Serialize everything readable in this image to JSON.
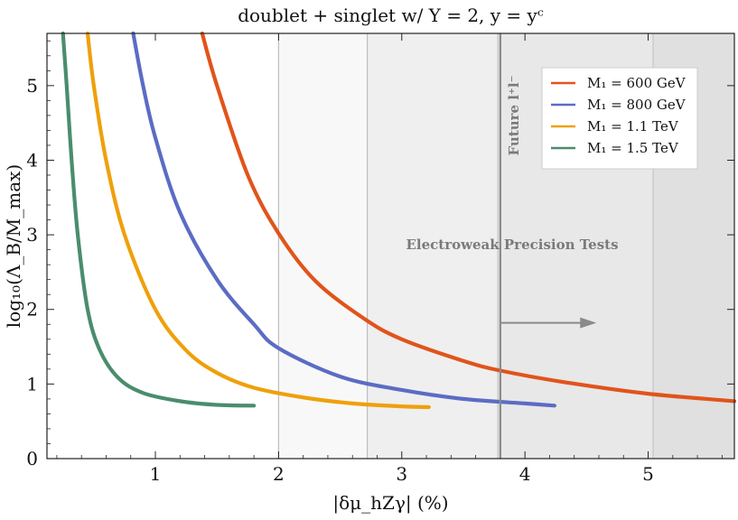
{
  "chart_data": {
    "type": "line",
    "title": "doublet + singlet w/ Y = 2,  y = yᶜ",
    "xlabel": "|δμ_hZγ| (%)",
    "ylabel": "log₁₀(Λ_B/M_max)",
    "xlim": [
      0.12,
      5.7
    ],
    "ylim": [
      0,
      5.7
    ],
    "xticks": [
      1,
      2,
      3,
      4,
      5
    ],
    "yticks": [
      0,
      1,
      2,
      3,
      4,
      5
    ],
    "grid": false,
    "legend_position": "top-right",
    "series": [
      {
        "name": "M₁ = 600 GeV",
        "color": "#e0541b",
        "points": [
          [
            1.38,
            5.7
          ],
          [
            1.5,
            5.0
          ],
          [
            1.75,
            3.8
          ],
          [
            2.0,
            3.02
          ],
          [
            2.3,
            2.38
          ],
          [
            2.7,
            1.87
          ],
          [
            3.0,
            1.6
          ],
          [
            3.5,
            1.31
          ],
          [
            3.8,
            1.18
          ],
          [
            4.3,
            1.03
          ],
          [
            5.0,
            0.87
          ],
          [
            5.7,
            0.77
          ]
        ]
      },
      {
        "name": "M₁ = 800 GeV",
        "color": "#5b6cc4",
        "points": [
          [
            0.82,
            5.7
          ],
          [
            0.9,
            5.0
          ],
          [
            1.0,
            4.3
          ],
          [
            1.2,
            3.3
          ],
          [
            1.5,
            2.4
          ],
          [
            1.8,
            1.8
          ],
          [
            2.0,
            1.48
          ],
          [
            2.5,
            1.1
          ],
          [
            3.0,
            0.92
          ],
          [
            3.5,
            0.8
          ],
          [
            4.0,
            0.74
          ],
          [
            4.24,
            0.71
          ]
        ]
      },
      {
        "name": "M₁ = 1.1 TeV",
        "color": "#efa00b",
        "points": [
          [
            0.45,
            5.7
          ],
          [
            0.5,
            5.0
          ],
          [
            0.6,
            4.0
          ],
          [
            0.75,
            3.0
          ],
          [
            1.0,
            2.0
          ],
          [
            1.25,
            1.45
          ],
          [
            1.5,
            1.15
          ],
          [
            1.8,
            0.95
          ],
          [
            2.2,
            0.82
          ],
          [
            2.6,
            0.74
          ],
          [
            3.0,
            0.7
          ],
          [
            3.22,
            0.69
          ]
        ]
      },
      {
        "name": "M₁ = 1.5 TeV",
        "color": "#4a8d6d",
        "points": [
          [
            0.25,
            5.7
          ],
          [
            0.28,
            5.0
          ],
          [
            0.32,
            4.0
          ],
          [
            0.37,
            3.0
          ],
          [
            0.45,
            2.0
          ],
          [
            0.55,
            1.45
          ],
          [
            0.7,
            1.08
          ],
          [
            0.9,
            0.88
          ],
          [
            1.2,
            0.77
          ],
          [
            1.5,
            0.72
          ],
          [
            1.8,
            0.71
          ]
        ]
      }
    ],
    "shaded_regions": [
      {
        "x": [
          2.0,
          5.7
        ],
        "fill": "#e9e9e9",
        "opacity": 0.3,
        "edge": "#bdbdbd"
      },
      {
        "x": [
          2.72,
          5.7
        ],
        "fill": "#e0e0e0",
        "opacity": 0.35,
        "edge": "#bdbdbd"
      },
      {
        "x": [
          3.78,
          5.7
        ],
        "fill": "#dcdcdc",
        "opacity": 0.35,
        "edge": "#c6c6c6"
      },
      {
        "x": [
          5.04,
          5.7
        ],
        "fill": "#d4d4d4",
        "opacity": 0.4,
        "edge": "#c6c6c6"
      }
    ],
    "vertical_line": {
      "x": 3.8,
      "color": "#8a8a8a"
    },
    "arrow": {
      "x_from": 3.8,
      "x_to": 4.58,
      "y": 1.82,
      "color": "#8a8a8a"
    },
    "annotations": {
      "ewpt_label": "Electroweak Precision Tests",
      "future_label": "Future l⁺l⁻"
    }
  }
}
